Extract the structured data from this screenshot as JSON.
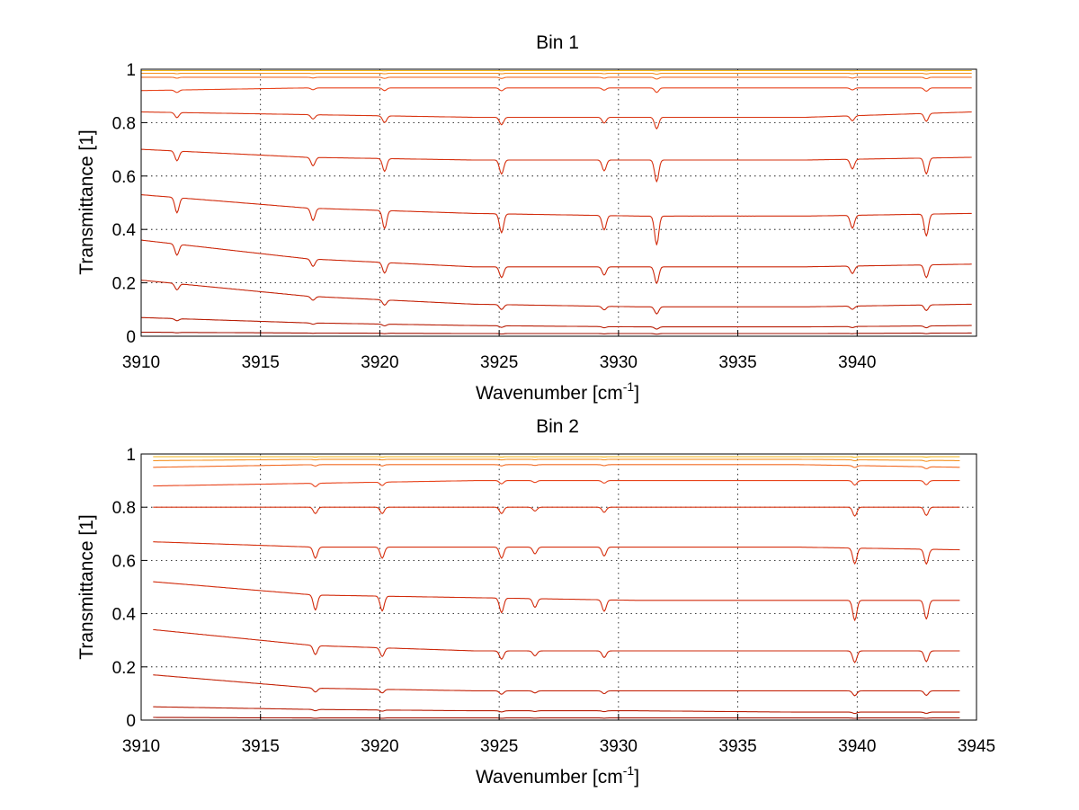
{
  "chart_data": [
    {
      "type": "line",
      "title": "Bin 1",
      "xlabel": "Wavenumber [cm",
      "xlabel_sup": "-1",
      "xlabel_end": "]",
      "ylabel": "Transmittance [1]",
      "xlim": [
        3910,
        3945
      ],
      "ylim": [
        0,
        1
      ],
      "x_ticks": [
        "3910",
        "3915",
        "3920",
        "3925",
        "3930",
        "3935",
        "3940"
      ],
      "y_ticks": [
        "0",
        "0.2",
        "0.4",
        "0.6",
        "0.8",
        "1"
      ],
      "grid": true,
      "x_range": [
        3910.0,
        3944.8
      ],
      "absorption_lines": [
        {
          "x": 3911.5,
          "scale": 1.0
        },
        {
          "x": 3917.2,
          "scale": 0.8
        },
        {
          "x": 3920.2,
          "scale": 1.2
        },
        {
          "x": 3925.1,
          "scale": 1.3
        },
        {
          "x": 3929.4,
          "scale": 1.0
        },
        {
          "x": 3931.6,
          "scale": 2.0
        },
        {
          "x": 3939.8,
          "scale": 0.9
        },
        {
          "x": 3942.9,
          "scale": 1.5
        }
      ],
      "series": [
        {
          "values": [
            0.92,
            0.93,
            0.93,
            0.93,
            0.93,
            0.93
          ],
          "color": "#e8441c"
        },
        {
          "values": [
            0.84,
            0.83,
            0.82,
            0.82,
            0.82,
            0.84
          ],
          "color": "#d93512"
        },
        {
          "values": [
            0.7,
            0.67,
            0.66,
            0.66,
            0.66,
            0.67
          ],
          "color": "#d6300f"
        },
        {
          "values": [
            0.53,
            0.48,
            0.46,
            0.45,
            0.45,
            0.46
          ],
          "color": "#d22c0d"
        },
        {
          "values": [
            0.36,
            0.29,
            0.26,
            0.26,
            0.26,
            0.27
          ],
          "color": "#cc280b"
        },
        {
          "values": [
            0.21,
            0.15,
            0.12,
            0.11,
            0.11,
            0.12
          ],
          "color": "#c42409"
        },
        {
          "values": [
            0.07,
            0.05,
            0.04,
            0.035,
            0.035,
            0.04
          ],
          "color": "#b81e06"
        },
        {
          "values": [
            0.015,
            0.012,
            0.01,
            0.01,
            0.01,
            0.012
          ],
          "color": "#a31203"
        },
        {
          "values": [
            0.97,
            0.97,
            0.97,
            0.97,
            0.97,
            0.97
          ],
          "color": "#f26a22"
        },
        {
          "values": [
            0.985,
            0.985,
            0.985,
            0.985,
            0.985,
            0.985
          ],
          "color": "#f5901f"
        },
        {
          "values": [
            0.995,
            0.995,
            0.995,
            0.995,
            0.995,
            0.995
          ],
          "color": "#f2b61a"
        },
        {
          "values": [
            1.0,
            1.0,
            1.0,
            1.0,
            1.0,
            1.0
          ],
          "color": "#c8d41a"
        }
      ]
    },
    {
      "type": "line",
      "title": "Bin 2",
      "xlabel": "Wavenumber [cm",
      "xlabel_sup": "-1",
      "xlabel_end": "]",
      "ylabel": "Transmittance [1]",
      "xlim": [
        3910,
        3945
      ],
      "ylim": [
        0,
        1
      ],
      "x_ticks": [
        "3910",
        "3915",
        "3920",
        "3925",
        "3930",
        "3935",
        "3940",
        "3945"
      ],
      "y_ticks": [
        "0",
        "0.2",
        "0.4",
        "0.6",
        "0.8",
        "1"
      ],
      "grid": true,
      "x_range": [
        3910.5,
        3944.3
      ],
      "absorption_lines": [
        {
          "x": 3917.3,
          "scale": 1.0
        },
        {
          "x": 3920.1,
          "scale": 1.0
        },
        {
          "x": 3925.1,
          "scale": 1.0
        },
        {
          "x": 3926.5,
          "scale": 0.6
        },
        {
          "x": 3929.4,
          "scale": 0.8
        },
        {
          "x": 3939.9,
          "scale": 1.4
        },
        {
          "x": 3942.9,
          "scale": 1.3
        }
      ],
      "series": [
        {
          "values": [
            0.88,
            0.89,
            0.9,
            0.9,
            0.9,
            0.9
          ],
          "color": "#e8441c"
        },
        {
          "values": [
            0.8,
            0.8,
            0.8,
            0.8,
            0.8,
            0.8
          ],
          "color": "#d93512"
        },
        {
          "values": [
            0.67,
            0.65,
            0.65,
            0.65,
            0.65,
            0.64
          ],
          "color": "#d6300f"
        },
        {
          "values": [
            0.52,
            0.47,
            0.46,
            0.45,
            0.45,
            0.45
          ],
          "color": "#d22c0d"
        },
        {
          "values": [
            0.34,
            0.28,
            0.26,
            0.26,
            0.26,
            0.26
          ],
          "color": "#cc280b"
        },
        {
          "values": [
            0.17,
            0.12,
            0.11,
            0.11,
            0.11,
            0.11
          ],
          "color": "#c42409"
        },
        {
          "values": [
            0.05,
            0.04,
            0.035,
            0.035,
            0.03,
            0.03
          ],
          "color": "#b81e06"
        },
        {
          "values": [
            0.01,
            0.008,
            0.008,
            0.008,
            0.008,
            0.008
          ],
          "color": "#a31203"
        },
        {
          "values": [
            0.95,
            0.96,
            0.96,
            0.96,
            0.96,
            0.95
          ],
          "color": "#f26a22"
        },
        {
          "values": [
            0.975,
            0.98,
            0.98,
            0.98,
            0.98,
            0.975
          ],
          "color": "#f5901f"
        },
        {
          "values": [
            0.99,
            0.99,
            0.99,
            0.99,
            0.99,
            0.99
          ],
          "color": "#f2b61a"
        },
        {
          "values": [
            1.0,
            1.0,
            1.0,
            1.0,
            1.0,
            1.0
          ],
          "color": "#1a5fd6"
        }
      ]
    }
  ]
}
